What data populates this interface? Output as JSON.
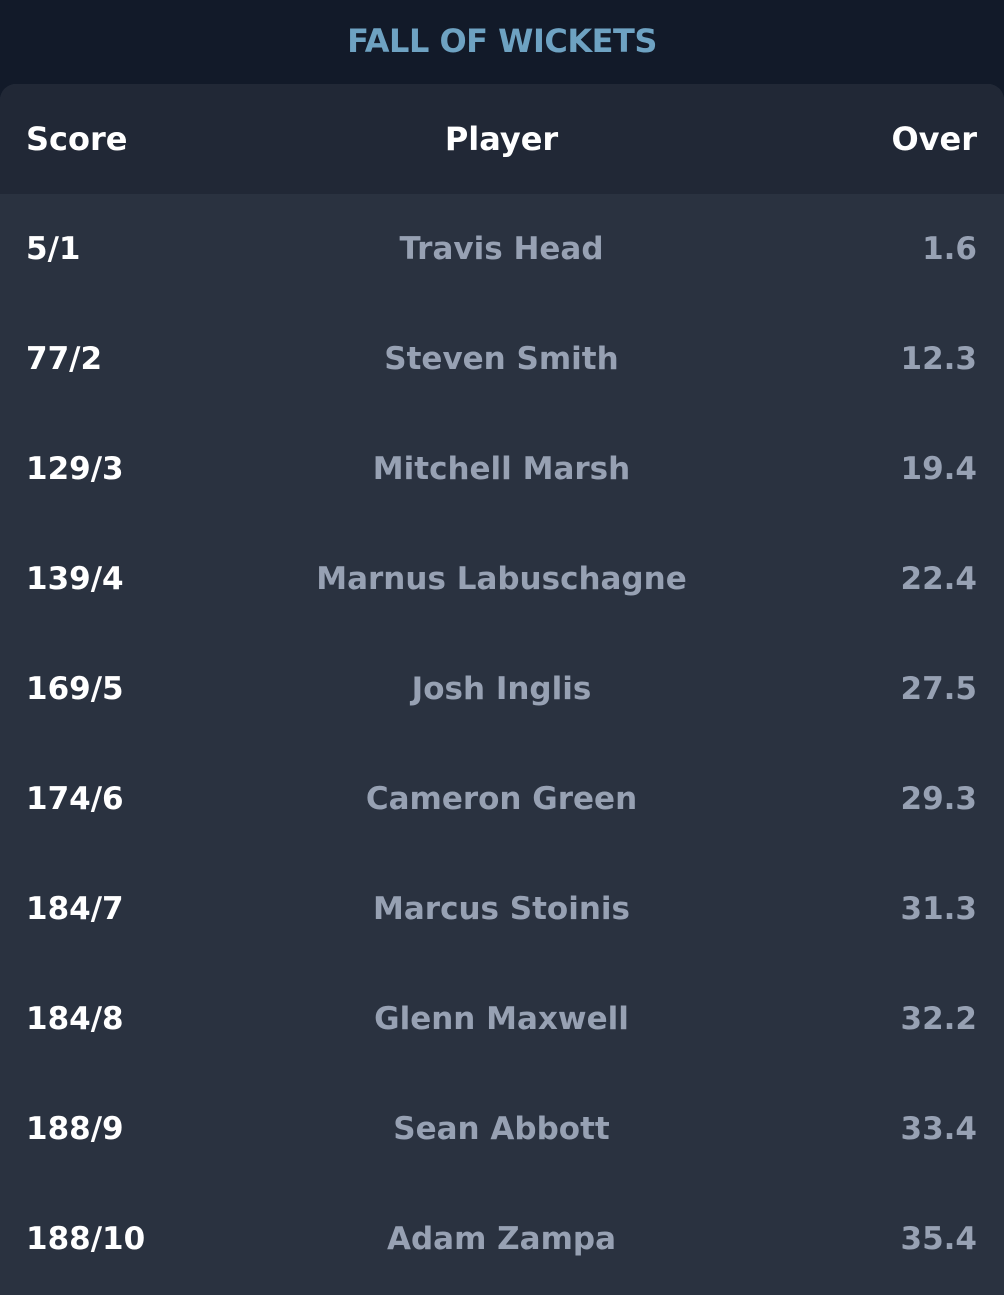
{
  "title": "FALL OF WICKETS",
  "columns": {
    "score": "Score",
    "player": "Player",
    "over": "Over"
  },
  "rows": [
    {
      "score": "5/1",
      "player": "Travis Head",
      "over": "1.6"
    },
    {
      "score": "77/2",
      "player": "Steven Smith",
      "over": "12.3"
    },
    {
      "score": "129/3",
      "player": "Mitchell Marsh",
      "over": "19.4"
    },
    {
      "score": "139/4",
      "player": "Marnus Labuschagne",
      "over": "22.4"
    },
    {
      "score": "169/5",
      "player": "Josh Inglis",
      "over": "27.5"
    },
    {
      "score": "174/6",
      "player": "Cameron Green",
      "over": "29.3"
    },
    {
      "score": "184/7",
      "player": "Marcus Stoinis",
      "over": "31.3"
    },
    {
      "score": "184/8",
      "player": "Glenn Maxwell",
      "over": "32.2"
    },
    {
      "score": "188/9",
      "player": "Sean Abbott",
      "over": "33.4"
    },
    {
      "score": "188/10",
      "player": "Adam Zampa",
      "over": "35.4"
    }
  ],
  "colors": {
    "page_background": "#121a29",
    "card_background": "#2a3240",
    "header_background": "#212836",
    "title": "#6ea2c2",
    "score_text": "#ffffff",
    "muted_text": "#97a1b3"
  }
}
